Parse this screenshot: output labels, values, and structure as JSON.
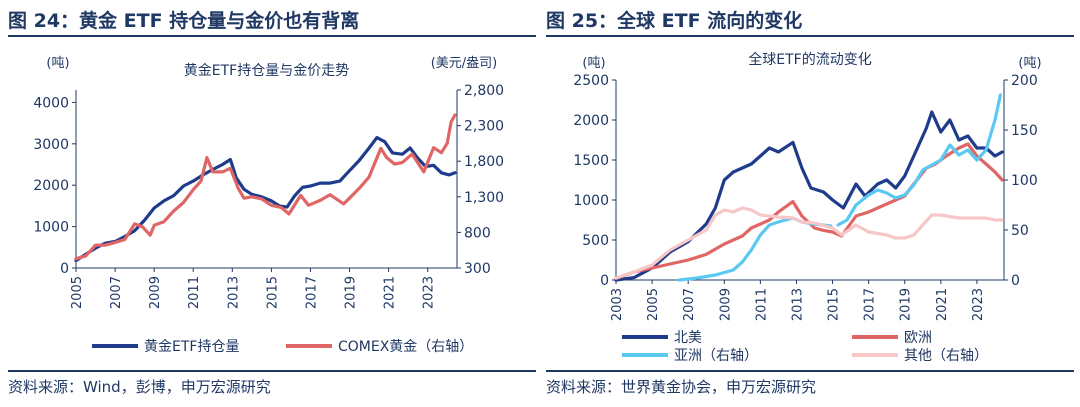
{
  "left": {
    "figure_title": "图 24：黄金 ETF 持仓量与金价也有背离",
    "source": "资料来源：Wind，彭博，申万宏源研究",
    "chart_data": {
      "type": "line",
      "title": "黄金ETF持仓量与金价走势",
      "y_unit_left": "(吨)",
      "y_unit_right": "(美元/盎司)",
      "xlim": [
        2005,
        2024.5
      ],
      "ylim": [
        0,
        4300
      ],
      "y2lim": [
        300,
        2800
      ],
      "x_ticks": [
        "2005",
        "2007",
        "2009",
        "2011",
        "2013",
        "2015",
        "2017",
        "2019",
        "2021",
        "2023"
      ],
      "y_ticks": [
        "0",
        "1000",
        "2000",
        "3000",
        "4000"
      ],
      "y2_ticks": [
        "300",
        "800",
        "1,300",
        "1,800",
        "2,300",
        "2,800"
      ],
      "grid": false,
      "legend": "bottom",
      "series": [
        {
          "name": "黄金ETF持仓量",
          "axis": "left",
          "color": "#1f3b8c",
          "points": [
            [
              2005,
              180
            ],
            [
              2005.5,
              330
            ],
            [
              2006,
              480
            ],
            [
              2006.5,
              600
            ],
            [
              2007,
              640
            ],
            [
              2007.5,
              760
            ],
            [
              2008,
              900
            ],
            [
              2008.5,
              1150
            ],
            [
              2009,
              1450
            ],
            [
              2009.5,
              1620
            ],
            [
              2010,
              1750
            ],
            [
              2010.5,
              1980
            ],
            [
              2011,
              2100
            ],
            [
              2011.5,
              2250
            ],
            [
              2012,
              2380
            ],
            [
              2012.5,
              2500
            ],
            [
              2012.9,
              2620
            ],
            [
              2013.2,
              2180
            ],
            [
              2013.6,
              1900
            ],
            [
              2014,
              1780
            ],
            [
              2014.5,
              1720
            ],
            [
              2015,
              1620
            ],
            [
              2015.4,
              1500
            ],
            [
              2015.8,
              1470
            ],
            [
              2016.2,
              1750
            ],
            [
              2016.6,
              1950
            ],
            [
              2017,
              1980
            ],
            [
              2017.5,
              2050
            ],
            [
              2018,
              2050
            ],
            [
              2018.5,
              2100
            ],
            [
              2019,
              2350
            ],
            [
              2019.5,
              2600
            ],
            [
              2020,
              2900
            ],
            [
              2020.4,
              3150
            ],
            [
              2020.8,
              3050
            ],
            [
              2021.2,
              2780
            ],
            [
              2021.7,
              2750
            ],
            [
              2022.1,
              2900
            ],
            [
              2022.5,
              2650
            ],
            [
              2022.9,
              2450
            ],
            [
              2023.3,
              2480
            ],
            [
              2023.7,
              2300
            ],
            [
              2024.1,
              2250
            ],
            [
              2024.4,
              2300
            ]
          ]
        },
        {
          "name": "COMEX黄金（右轴）",
          "axis": "right",
          "color": "#e06666",
          "points": [
            [
              2005,
              430
            ],
            [
              2005.5,
              470
            ],
            [
              2006,
              620
            ],
            [
              2006.5,
              620
            ],
            [
              2007,
              660
            ],
            [
              2007.5,
              700
            ],
            [
              2008,
              920
            ],
            [
              2008.4,
              880
            ],
            [
              2008.8,
              760
            ],
            [
              2009,
              900
            ],
            [
              2009.5,
              950
            ],
            [
              2010,
              1100
            ],
            [
              2010.5,
              1220
            ],
            [
              2011,
              1400
            ],
            [
              2011.4,
              1520
            ],
            [
              2011.7,
              1850
            ],
            [
              2012,
              1650
            ],
            [
              2012.5,
              1650
            ],
            [
              2012.9,
              1700
            ],
            [
              2013.3,
              1420
            ],
            [
              2013.6,
              1280
            ],
            [
              2014,
              1300
            ],
            [
              2014.5,
              1270
            ],
            [
              2015,
              1180
            ],
            [
              2015.5,
              1150
            ],
            [
              2015.9,
              1060
            ],
            [
              2016.5,
              1320
            ],
            [
              2016.9,
              1180
            ],
            [
              2017.5,
              1250
            ],
            [
              2018,
              1330
            ],
            [
              2018.7,
              1200
            ],
            [
              2019,
              1280
            ],
            [
              2019.5,
              1420
            ],
            [
              2020,
              1580
            ],
            [
              2020.6,
              1980
            ],
            [
              2020.9,
              1850
            ],
            [
              2021.3,
              1760
            ],
            [
              2021.7,
              1780
            ],
            [
              2022.2,
              1900
            ],
            [
              2022.8,
              1650
            ],
            [
              2023.3,
              1990
            ],
            [
              2023.7,
              1920
            ],
            [
              2024,
              2050
            ],
            [
              2024.2,
              2350
            ],
            [
              2024.4,
              2450
            ]
          ]
        }
      ]
    }
  },
  "right": {
    "figure_title": "图 25：全球 ETF 流向的变化",
    "source": "资料来源：世界黄金协会，申万宏源研究",
    "chart_data": {
      "type": "line",
      "title": "全球ETF的流动变化",
      "y_unit_left": "(吨)",
      "y_unit_right": "(吨)",
      "xlim": [
        2003,
        2024.5
      ],
      "ylim": [
        0,
        2500
      ],
      "y2lim": [
        0,
        200
      ],
      "x_ticks": [
        "2003",
        "2005",
        "2007",
        "2009",
        "2011",
        "2013",
        "2015",
        "2017",
        "2019",
        "2021",
        "2023"
      ],
      "y_ticks": [
        "0",
        "500",
        "1000",
        "1500",
        "2000",
        "2500"
      ],
      "y2_ticks": [
        "0",
        "50",
        "100",
        "150",
        "200"
      ],
      "grid": false,
      "legend": "bottom",
      "series": [
        {
          "name": "北美",
          "axis": "left",
          "color": "#1f3b8c",
          "points": [
            [
              2003,
              0
            ],
            [
              2004,
              30
            ],
            [
              2005,
              150
            ],
            [
              2006,
              350
            ],
            [
              2007,
              480
            ],
            [
              2008,
              700
            ],
            [
              2008.5,
              900
            ],
            [
              2009,
              1250
            ],
            [
              2009.5,
              1350
            ],
            [
              2010,
              1400
            ],
            [
              2010.5,
              1450
            ],
            [
              2011,
              1550
            ],
            [
              2011.5,
              1650
            ],
            [
              2012,
              1600
            ],
            [
              2012.8,
              1720
            ],
            [
              2013.3,
              1400
            ],
            [
              2013.8,
              1150
            ],
            [
              2014.5,
              1100
            ],
            [
              2015,
              1000
            ],
            [
              2015.6,
              900
            ],
            [
              2016.3,
              1200
            ],
            [
              2016.8,
              1050
            ],
            [
              2017.5,
              1200
            ],
            [
              2018,
              1250
            ],
            [
              2018.5,
              1150
            ],
            [
              2019,
              1300
            ],
            [
              2019.6,
              1600
            ],
            [
              2020.2,
              1900
            ],
            [
              2020.5,
              2100
            ],
            [
              2021,
              1850
            ],
            [
              2021.5,
              2000
            ],
            [
              2022,
              1750
            ],
            [
              2022.5,
              1800
            ],
            [
              2023,
              1650
            ],
            [
              2023.5,
              1650
            ],
            [
              2024,
              1550
            ],
            [
              2024.4,
              1600
            ]
          ]
        },
        {
          "name": "欧洲",
          "axis": "left",
          "color": "#e06666",
          "points": [
            [
              2003,
              20
            ],
            [
              2004,
              100
            ],
            [
              2005,
              150
            ],
            [
              2006,
              200
            ],
            [
              2007,
              250
            ],
            [
              2008,
              320
            ],
            [
              2009,
              450
            ],
            [
              2010,
              550
            ],
            [
              2010.5,
              650
            ],
            [
              2011,
              700
            ],
            [
              2011.5,
              750
            ],
            [
              2012,
              850
            ],
            [
              2012.8,
              980
            ],
            [
              2013.3,
              800
            ],
            [
              2014,
              650
            ],
            [
              2014.5,
              620
            ],
            [
              2015,
              600
            ],
            [
              2015.5,
              550
            ],
            [
              2016.3,
              800
            ],
            [
              2017,
              850
            ],
            [
              2017.5,
              900
            ],
            [
              2018,
              950
            ],
            [
              2018.5,
              1000
            ],
            [
              2019,
              1050
            ],
            [
              2019.5,
              1200
            ],
            [
              2020.2,
              1400
            ],
            [
              2020.7,
              1450
            ],
            [
              2021.3,
              1550
            ],
            [
              2022,
              1650
            ],
            [
              2022.5,
              1700
            ],
            [
              2023,
              1550
            ],
            [
              2023.5,
              1450
            ],
            [
              2024,
              1350
            ],
            [
              2024.4,
              1250
            ]
          ]
        },
        {
          "name": "亚洲（右轴）",
          "axis": "right",
          "color": "#5bc8f2",
          "points": [
            [
              2006.5,
              0
            ],
            [
              2007.5,
              2
            ],
            [
              2008.5,
              5
            ],
            [
              2009.5,
              10
            ],
            [
              2010,
              18
            ],
            [
              2010.5,
              30
            ],
            [
              2011,
              45
            ],
            [
              2011.5,
              55
            ],
            [
              2012,
              58
            ],
            [
              2012.8,
              62
            ],
            [
              2013.3,
              58
            ],
            [
              2014,
              56
            ],
            [
              2014.9,
              54
            ]
          ]
        },
        {
          "name": "亚洲（右轴）",
          "axis": "right",
          "color": "#5bc8f2",
          "points": [
            [
              2015.3,
              55
            ],
            [
              2015.8,
              60
            ],
            [
              2016.3,
              75
            ],
            [
              2017,
              85
            ],
            [
              2017.5,
              90
            ],
            [
              2018,
              87
            ],
            [
              2018.5,
              82
            ],
            [
              2019,
              85
            ],
            [
              2019.5,
              95
            ],
            [
              2020,
              110
            ],
            [
              2020.5,
              115
            ],
            [
              2021,
              120
            ],
            [
              2021.5,
              135
            ],
            [
              2022,
              125
            ],
            [
              2022.5,
              130
            ],
            [
              2023,
              120
            ],
            [
              2023.5,
              130
            ],
            [
              2024,
              160
            ],
            [
              2024.3,
              185
            ]
          ]
        },
        {
          "name": "其他（右轴）",
          "axis": "right",
          "color": "#f7c6c6",
          "points": [
            [
              2003,
              2
            ],
            [
              2004,
              8
            ],
            [
              2005,
              15
            ],
            [
              2006,
              30
            ],
            [
              2007,
              40
            ],
            [
              2008,
              50
            ],
            [
              2008.5,
              65
            ],
            [
              2009,
              70
            ],
            [
              2009.5,
              68
            ],
            [
              2010,
              72
            ],
            [
              2010.5,
              70
            ],
            [
              2011,
              65
            ],
            [
              2012,
              63
            ],
            [
              2012.8,
              62
            ],
            [
              2013.3,
              58
            ],
            [
              2014,
              57
            ],
            [
              2015,
              52
            ],
            [
              2015.5,
              45
            ],
            [
              2016.3,
              55
            ],
            [
              2017,
              48
            ],
            [
              2018,
              45
            ],
            [
              2018.5,
              42
            ],
            [
              2019,
              42
            ],
            [
              2019.5,
              45
            ],
            [
              2020,
              55
            ],
            [
              2020.5,
              65
            ],
            [
              2021,
              65
            ],
            [
              2022,
              62
            ],
            [
              2023,
              62
            ],
            [
              2023.5,
              62
            ],
            [
              2024,
              60
            ],
            [
              2024.4,
              60
            ]
          ]
        }
      ]
    }
  }
}
